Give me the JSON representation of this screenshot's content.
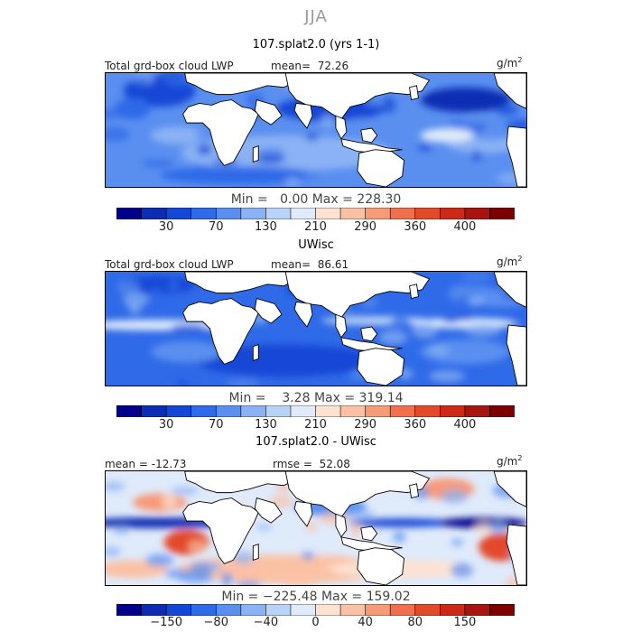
{
  "season": "JJA",
  "chart_data": [
    {
      "type": "heatmap",
      "title": "107.splat2.0 (yrs 1-1)",
      "variable": "Total grd-box cloud LWP",
      "units": "g/m",
      "units_sup": "2",
      "stat_label": "mean=",
      "stat_value": "72.26",
      "min_label": "Min =",
      "min_value": "0.00",
      "max_label": "Max =",
      "max_value": "228.30",
      "levels": [
        "30",
        "70",
        "130",
        "210",
        "290",
        "360",
        "400"
      ],
      "colors": [
        "#00008b",
        "#0a2db4",
        "#1447d6",
        "#2f6ae8",
        "#5a8ff0",
        "#8ab2f4",
        "#b9d2f7",
        "#dfeafb",
        "#fde2d2",
        "#fbc1a4",
        "#f79a78",
        "#f0704d",
        "#e34a2a",
        "#cc2a16",
        "#a81510",
        "#7c0000"
      ]
    },
    {
      "type": "heatmap",
      "title": "UWisc",
      "variable": "Total grd-box cloud LWP",
      "units": "g/m",
      "units_sup": "2",
      "stat_label": "mean=",
      "stat_value": "86.61",
      "min_label": "Min =",
      "min_value": "3.28",
      "max_label": "Max =",
      "max_value": "319.14",
      "levels": [
        "30",
        "70",
        "130",
        "210",
        "290",
        "360",
        "400"
      ],
      "colors": [
        "#00008b",
        "#0a2db4",
        "#1447d6",
        "#2f6ae8",
        "#5a8ff0",
        "#8ab2f4",
        "#b9d2f7",
        "#dfeafb",
        "#fde2d2",
        "#fbc1a4",
        "#f79a78",
        "#f0704d",
        "#e34a2a",
        "#cc2a16",
        "#a81510",
        "#7c0000"
      ]
    },
    {
      "type": "heatmap",
      "title": "107.splat2.0 - UWisc",
      "stat_label": "mean =",
      "stat_value": "-12.73",
      "rmse_label": "rmse =",
      "rmse_value": "52.08",
      "units": "g/m",
      "units_sup": "2",
      "min_label": "Min =",
      "min_value": "−225.48",
      "max_label": "Max =",
      "max_value": "159.02",
      "levels": [
        "−150",
        "−80",
        "−40",
        "0",
        "40",
        "80",
        "150"
      ],
      "colors": [
        "#00008b",
        "#0a2db4",
        "#1447d6",
        "#2f6ae8",
        "#5a8ff0",
        "#8ab2f4",
        "#b9d2f7",
        "#dfeafb",
        "#fde2d2",
        "#fbc1a4",
        "#f79a78",
        "#f0704d",
        "#e34a2a",
        "#cc2a16",
        "#a81510",
        "#7c0000"
      ]
    }
  ]
}
